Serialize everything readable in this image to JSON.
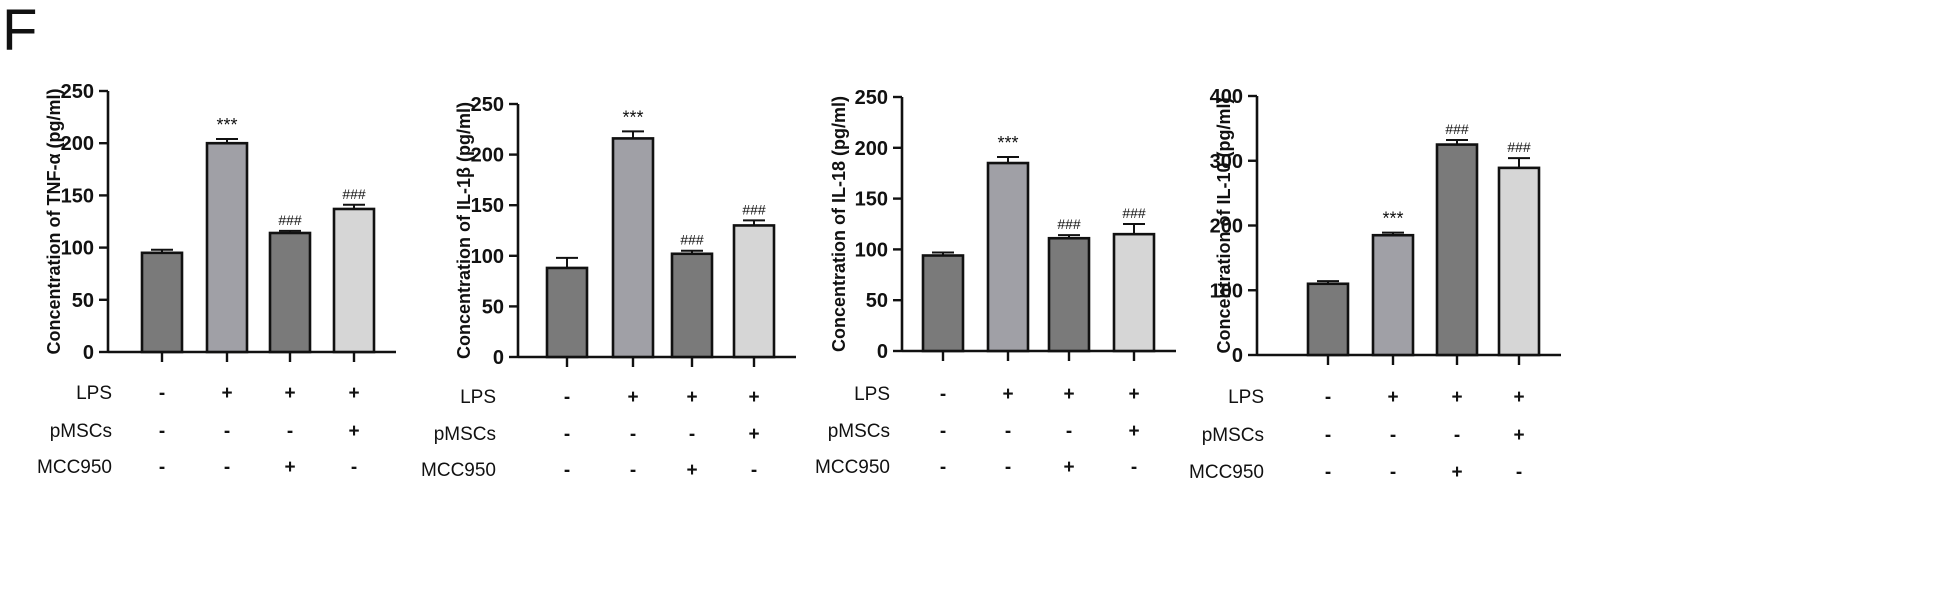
{
  "panel_label": "F",
  "condition_rows": [
    "LPS",
    "pMSCs",
    "MCC950"
  ],
  "chart_data": [
    {
      "type": "bar",
      "title": "",
      "ylabel": "Concentration of TNF-α (pg/ml)",
      "xlabel": "",
      "ylim": [
        0,
        250
      ],
      "yticks": [
        0,
        50,
        100,
        150,
        200,
        250
      ],
      "categories": [
        "1",
        "2",
        "3",
        "4"
      ],
      "values": [
        95,
        200,
        114,
        137
      ],
      "errors": [
        3,
        4,
        2,
        4
      ],
      "annotations": [
        "",
        "***",
        "###",
        "###"
      ],
      "conditions": [
        [
          "-",
          "+",
          "+",
          "+"
        ],
        [
          "-",
          "-",
          "-",
          "+"
        ],
        [
          "-",
          "-",
          "+",
          "-"
        ]
      ]
    },
    {
      "type": "bar",
      "title": "",
      "ylabel": "Concentration of IL-1β (pg/ml)",
      "xlabel": "",
      "ylim": [
        0,
        250
      ],
      "yticks": [
        0,
        50,
        100,
        150,
        200,
        250
      ],
      "categories": [
        "1",
        "2",
        "3",
        "4"
      ],
      "values": [
        88,
        216,
        102,
        130
      ],
      "errors": [
        10,
        7,
        3,
        5
      ],
      "annotations": [
        "",
        "***",
        "###",
        "###"
      ],
      "conditions": [
        [
          "-",
          "+",
          "+",
          "+"
        ],
        [
          "-",
          "-",
          "-",
          "+"
        ],
        [
          "-",
          "-",
          "+",
          "-"
        ]
      ]
    },
    {
      "type": "bar",
      "title": "",
      "ylabel": "Concentration of IL-18 (pg/ml)",
      "xlabel": "",
      "ylim": [
        0,
        250
      ],
      "yticks": [
        0,
        50,
        100,
        150,
        200,
        250
      ],
      "categories": [
        "1",
        "2",
        "3",
        "4"
      ],
      "values": [
        94,
        185,
        111,
        115
      ],
      "errors": [
        3,
        6,
        3,
        10
      ],
      "annotations": [
        "",
        "***",
        "###",
        "###"
      ],
      "conditions": [
        [
          "-",
          "+",
          "+",
          "+"
        ],
        [
          "-",
          "-",
          "-",
          "+"
        ],
        [
          "-",
          "-",
          "+",
          "-"
        ]
      ]
    },
    {
      "type": "bar",
      "title": "",
      "ylabel": "Concentration of IL-10 (pg/ml)",
      "xlabel": "",
      "ylim": [
        0,
        400
      ],
      "yticks": [
        0,
        100,
        200,
        300,
        400
      ],
      "categories": [
        "1",
        "2",
        "3",
        "4"
      ],
      "values": [
        110,
        185,
        325,
        289
      ],
      "errors": [
        4,
        4,
        7,
        15
      ],
      "annotations": [
        "",
        "***",
        "###",
        "###"
      ],
      "conditions": [
        [
          "-",
          "+",
          "+",
          "+"
        ],
        [
          "-",
          "-",
          "-",
          "+"
        ],
        [
          "-",
          "-",
          "+",
          "-"
        ]
      ]
    }
  ],
  "colors": {
    "bar_fills": [
      "#7a7a7a",
      "#a0a0a6",
      "#7a7a7a",
      "#d6d6d6"
    ],
    "stroke": "#111111"
  }
}
